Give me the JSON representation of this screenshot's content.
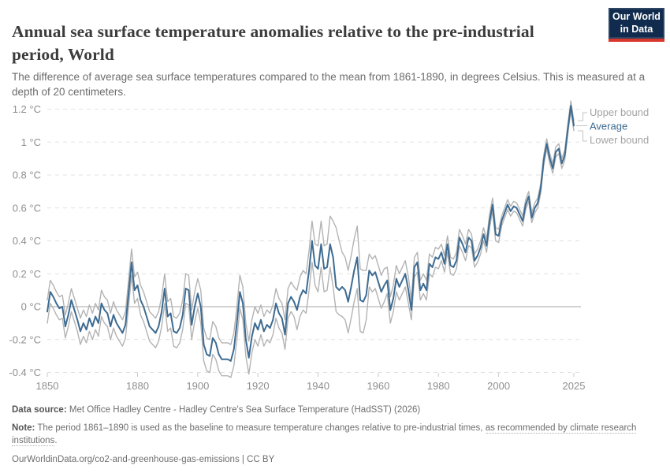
{
  "header": {
    "title": "Annual sea surface temperature anomalies relative to the pre-industrial period, World",
    "subtitle": "The difference of average sea surface temperatures compared to the mean from 1861-1890, in degrees Celsius. This is measured at a depth of 20 centimeters.",
    "logo": {
      "line1": "Our World",
      "line2": "in Data",
      "background": "#102b4e",
      "accent": "#d8352b"
    }
  },
  "footer": {
    "source_label": "Data source:",
    "source_text": "Met Office Hadley Centre - Hadley Centre's Sea Surface Temperature (HadSST) (2026)",
    "note_label": "Note:",
    "note_text": "The period 1861–1890 is used as the baseline to measure temperature changes relative to pre-industrial times, ",
    "note_link": "as recommended by climate research institutions",
    "note_suffix": ".",
    "url": "OurWorldinData.org/co2-and-greenhouse-gas-emissions",
    "separator": "|",
    "license": "CC BY"
  },
  "chart_data": {
    "type": "line",
    "title": "Annual sea surface temperature anomalies relative to the pre-industrial period, World",
    "xlabel": "",
    "ylabel": "",
    "unit": "°C",
    "grid": "horizontal-dashed",
    "legend_position": "right",
    "ylim": [
      -0.45,
      1.28
    ],
    "x": {
      "start": 1850,
      "end": 2025,
      "step": 1
    },
    "x_ticks": [
      1850,
      1880,
      1900,
      1920,
      1940,
      1960,
      1980,
      2000,
      2025
    ],
    "y_ticks": [
      {
        "value": 1.2,
        "label": "1.2 °C"
      },
      {
        "value": 1,
        "label": "1 °C"
      },
      {
        "value": 0.8,
        "label": "0.8 °C"
      },
      {
        "value": 0.6,
        "label": "0.6 °C"
      },
      {
        "value": 0.4,
        "label": "0.4 °C"
      },
      {
        "value": 0.2,
        "label": "0.2 °C"
      },
      {
        "value": 0,
        "label": "0 °C"
      },
      {
        "value": -0.2,
        "label": "-0.2 °C"
      },
      {
        "value": -0.4,
        "label": "-0.4 °C"
      }
    ],
    "colors": {
      "average": "#3d6b92",
      "bounds": "#b3b3b3",
      "grid": "#e2e2e2",
      "zero_line": "#a6a6a6",
      "tick": "#c9c9c9",
      "connector": "#c4c4c4",
      "axis_text": "#8f8f8f",
      "legend_text": "#a3a3a3"
    },
    "series": [
      {
        "name": "Upper bound",
        "color": "#b3b3b3",
        "values": [
          0.04,
          0.16,
          0.13,
          0.09,
          0.06,
          0.07,
          -0.05,
          0.02,
          0.11,
          0.05,
          -0.01,
          -0.07,
          -0.02,
          -0.06,
          0.01,
          -0.04,
          0.02,
          -0.02,
          0.1,
          0.06,
          0.04,
          -0.04,
          0.03,
          -0.02,
          -0.05,
          -0.08,
          -0.03,
          0.16,
          0.35,
          0.18,
          0.21,
          0.13,
          0.09,
          0.03,
          -0.03,
          -0.05,
          -0.07,
          -0.03,
          0.06,
          0.2,
          0.03,
          0.05,
          -0.06,
          -0.07,
          -0.04,
          0.04,
          0.2,
          0.19,
          -0.02,
          0.09,
          0.17,
          0.1,
          -0.13,
          -0.19,
          -0.2,
          -0.09,
          -0.12,
          -0.19,
          -0.22,
          -0.22,
          -0.22,
          -0.23,
          -0.16,
          0.0,
          0.19,
          0.12,
          -0.1,
          -0.21,
          -0.08,
          0.0,
          -0.04,
          0.01,
          -0.06,
          -0.02,
          -0.04,
          0.01,
          0.11,
          0.05,
          0.02,
          -0.08,
          0.11,
          0.15,
          0.12,
          0.1,
          0.18,
          0.22,
          0.2,
          0.34,
          0.52,
          0.38,
          0.37,
          0.52,
          0.37,
          0.38,
          0.55,
          0.52,
          0.48,
          0.4,
          0.33,
          0.3,
          0.22,
          0.31,
          0.41,
          0.49,
          0.23,
          0.22,
          0.22,
          0.32,
          0.29,
          0.31,
          0.25,
          0.19,
          0.23,
          0.24,
          0.06,
          0.13,
          0.25,
          0.2,
          0.24,
          0.28,
          0.18,
          0.04,
          0.3,
          0.33,
          0.16,
          0.2,
          0.16,
          0.32,
          0.3,
          0.36,
          0.35,
          0.38,
          0.31,
          0.43,
          0.3,
          0.29,
          0.33,
          0.47,
          0.43,
          0.38,
          0.47,
          0.44,
          0.32,
          0.35,
          0.4,
          0.48,
          0.41,
          0.56,
          0.66,
          0.48,
          0.47,
          0.55,
          0.6,
          0.65,
          0.61,
          0.64,
          0.63,
          0.59,
          0.55,
          0.65,
          0.7,
          0.57,
          0.63,
          0.66,
          0.75,
          0.92,
          1.02,
          0.93,
          0.87,
          0.97,
          0.99,
          0.9,
          0.95,
          1.11,
          1.25,
          1.13
        ]
      },
      {
        "name": "Average",
        "color": "#3d6b92",
        "values": [
          -0.03,
          0.09,
          0.06,
          0.02,
          -0.01,
          0.0,
          -0.12,
          -0.05,
          0.04,
          -0.02,
          -0.08,
          -0.15,
          -0.1,
          -0.14,
          -0.07,
          -0.12,
          -0.06,
          -0.1,
          0.02,
          -0.02,
          -0.04,
          -0.12,
          -0.05,
          -0.1,
          -0.13,
          -0.16,
          -0.11,
          0.08,
          0.27,
          0.1,
          0.13,
          0.04,
          0.0,
          -0.06,
          -0.12,
          -0.14,
          -0.16,
          -0.12,
          -0.03,
          0.11,
          -0.06,
          -0.04,
          -0.15,
          -0.16,
          -0.13,
          -0.05,
          0.11,
          0.1,
          -0.11,
          0.0,
          0.08,
          0.0,
          -0.23,
          -0.29,
          -0.3,
          -0.19,
          -0.22,
          -0.29,
          -0.32,
          -0.32,
          -0.32,
          -0.33,
          -0.26,
          -0.1,
          0.09,
          0.02,
          -0.2,
          -0.31,
          -0.18,
          -0.1,
          -0.14,
          -0.08,
          -0.15,
          -0.11,
          -0.13,
          -0.08,
          0.02,
          -0.04,
          -0.07,
          -0.17,
          0.02,
          0.06,
          0.03,
          -0.02,
          0.06,
          0.1,
          0.08,
          0.22,
          0.4,
          0.25,
          0.23,
          0.38,
          0.23,
          0.24,
          0.38,
          0.3,
          0.12,
          0.1,
          0.12,
          0.1,
          0.03,
          0.12,
          0.22,
          0.3,
          0.04,
          0.03,
          0.07,
          0.22,
          0.19,
          0.21,
          0.15,
          0.09,
          0.13,
          0.16,
          -0.02,
          0.05,
          0.17,
          0.12,
          0.16,
          0.2,
          0.1,
          -0.02,
          0.24,
          0.27,
          0.1,
          0.14,
          0.1,
          0.26,
          0.24,
          0.3,
          0.29,
          0.33,
          0.26,
          0.38,
          0.25,
          0.24,
          0.28,
          0.42,
          0.38,
          0.33,
          0.42,
          0.4,
          0.28,
          0.31,
          0.36,
          0.44,
          0.37,
          0.52,
          0.62,
          0.44,
          0.43,
          0.52,
          0.57,
          0.62,
          0.58,
          0.61,
          0.6,
          0.56,
          0.52,
          0.62,
          0.67,
          0.54,
          0.6,
          0.63,
          0.72,
          0.89,
          0.99,
          0.9,
          0.84,
          0.94,
          0.96,
          0.87,
          0.92,
          1.08,
          1.22,
          1.1
        ]
      },
      {
        "name": "Lower bound",
        "color": "#b3b3b3",
        "values": [
          -0.1,
          0.02,
          -0.01,
          -0.05,
          -0.08,
          -0.07,
          -0.19,
          -0.12,
          -0.03,
          -0.09,
          -0.15,
          -0.23,
          -0.18,
          -0.22,
          -0.15,
          -0.2,
          -0.14,
          -0.18,
          -0.06,
          -0.1,
          -0.12,
          -0.2,
          -0.13,
          -0.18,
          -0.21,
          -0.24,
          -0.19,
          0.0,
          0.19,
          0.02,
          0.05,
          -0.05,
          -0.09,
          -0.15,
          -0.21,
          -0.23,
          -0.25,
          -0.21,
          -0.12,
          0.02,
          -0.15,
          -0.13,
          -0.24,
          -0.25,
          -0.22,
          -0.14,
          0.02,
          0.01,
          -0.2,
          -0.09,
          -0.01,
          -0.1,
          -0.33,
          -0.39,
          -0.4,
          -0.29,
          -0.32,
          -0.39,
          -0.42,
          -0.42,
          -0.42,
          -0.43,
          -0.36,
          -0.2,
          -0.01,
          -0.08,
          -0.3,
          -0.41,
          -0.28,
          -0.2,
          -0.24,
          -0.17,
          -0.24,
          -0.2,
          -0.22,
          -0.17,
          -0.07,
          -0.13,
          -0.16,
          -0.26,
          -0.07,
          -0.03,
          -0.06,
          -0.14,
          -0.06,
          -0.02,
          -0.04,
          0.1,
          0.27,
          0.13,
          0.09,
          0.24,
          0.09,
          0.1,
          0.24,
          0.12,
          -0.03,
          -0.05,
          -0.06,
          -0.08,
          -0.16,
          -0.07,
          0.03,
          0.11,
          -0.15,
          -0.16,
          -0.08,
          0.12,
          0.09,
          0.11,
          0.05,
          -0.01,
          0.03,
          0.08,
          -0.1,
          -0.03,
          0.09,
          0.04,
          0.08,
          0.12,
          0.02,
          -0.08,
          0.18,
          0.21,
          0.04,
          0.08,
          0.04,
          0.2,
          0.18,
          0.24,
          0.23,
          0.28,
          0.21,
          0.33,
          0.2,
          0.19,
          0.23,
          0.37,
          0.33,
          0.28,
          0.37,
          0.36,
          0.24,
          0.27,
          0.32,
          0.4,
          0.33,
          0.48,
          0.58,
          0.4,
          0.39,
          0.49,
          0.54,
          0.59,
          0.55,
          0.58,
          0.57,
          0.53,
          0.49,
          0.59,
          0.64,
          0.51,
          0.57,
          0.6,
          0.69,
          0.86,
          0.96,
          0.87,
          0.81,
          0.91,
          0.93,
          0.84,
          0.89,
          1.05,
          1.19,
          1.07
        ]
      }
    ]
  }
}
